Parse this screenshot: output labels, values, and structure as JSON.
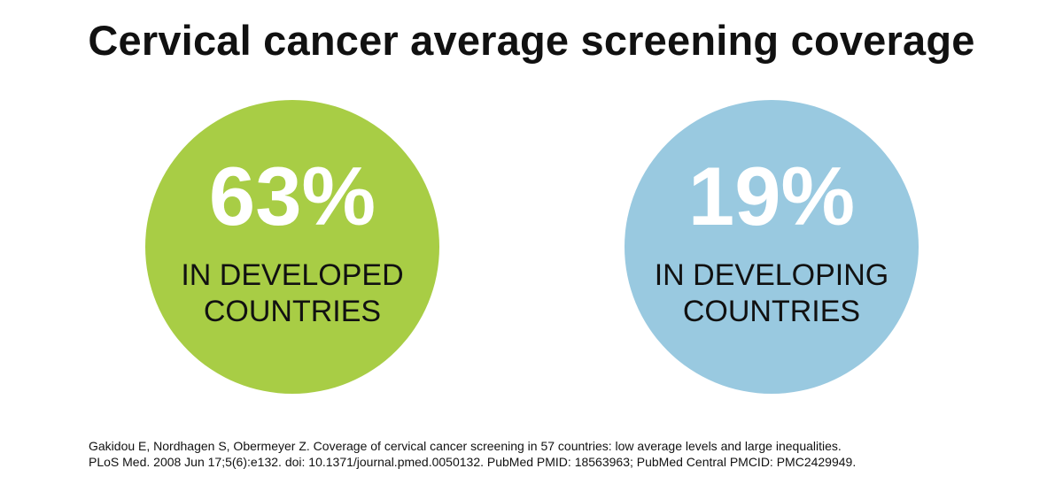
{
  "title": "Cervical cancer average screening coverage",
  "stats": [
    {
      "value": "63%",
      "label_line1": "IN DEVELOPED",
      "label_line2": "COUNTRIES",
      "color": "#a8cd45"
    },
    {
      "value": "19%",
      "label_line1": "IN DEVELOPING",
      "label_line2": "COUNTRIES",
      "color": "#99c9e0"
    }
  ],
  "citation": {
    "line1": "Gakidou E, Nordhagen S, Obermeyer Z. Coverage of cervical cancer screening in 57 countries: low average levels and large inequalities.",
    "line2": "PLoS Med. 2008 Jun 17;5(6):e132. doi: 10.1371/journal.pmed.0050132. PubMed PMID: 18563963; PubMed Central PMCID: PMC2429949."
  }
}
